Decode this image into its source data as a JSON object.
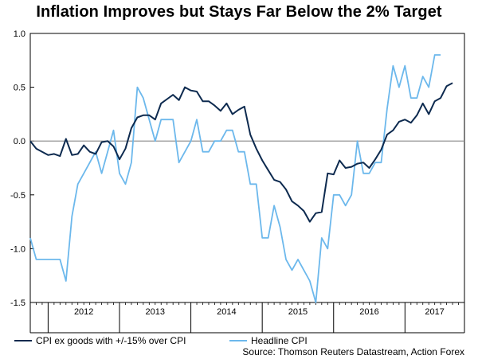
{
  "chart_data": {
    "type": "line",
    "title": "Inflation Improves but Stays Far Below the 2% Target",
    "xlabel": "",
    "ylabel": "",
    "ylim": [
      -1.5,
      1.0
    ],
    "yticks": [
      "1.0",
      "0.5",
      "0.0",
      "-0.5",
      "-1.0",
      "-1.5"
    ],
    "ytick_values": [
      1.0,
      0.5,
      0.0,
      -0.5,
      -1.0,
      -1.5
    ],
    "year_labels": [
      "2012",
      "2013",
      "2014",
      "2015",
      "2016",
      "2017"
    ],
    "x_start_month": "2011-10",
    "zero_line": true,
    "series": [
      {
        "name": "CPI ex goods with +/-15% over CPI",
        "color": "#0d2a4f",
        "values": [
          0.0,
          -0.07,
          -0.1,
          -0.13,
          -0.12,
          -0.14,
          0.02,
          -0.13,
          -0.12,
          -0.04,
          -0.1,
          -0.12,
          -0.01,
          0.0,
          -0.05,
          -0.17,
          -0.07,
          0.12,
          0.22,
          0.24,
          0.24,
          0.2,
          0.35,
          0.39,
          0.43,
          0.38,
          0.5,
          0.47,
          0.46,
          0.37,
          0.37,
          0.33,
          0.28,
          0.35,
          0.25,
          0.29,
          0.32,
          0.06,
          -0.07,
          -0.18,
          -0.27,
          -0.36,
          -0.38,
          -0.45,
          -0.56,
          -0.6,
          -0.65,
          -0.75,
          -0.67,
          -0.66,
          -0.3,
          -0.31,
          -0.18,
          -0.25,
          -0.24,
          -0.21,
          -0.2,
          -0.25,
          -0.17,
          -0.08,
          0.06,
          0.1,
          0.18,
          0.2,
          0.17,
          0.24,
          0.35,
          0.25,
          0.37,
          0.4,
          0.51,
          0.54
        ]
      },
      {
        "name": "Headline CPI",
        "color": "#6cb8ec",
        "values": [
          -0.9,
          -1.1,
          -1.1,
          -1.1,
          -1.1,
          -1.1,
          -1.3,
          -0.7,
          -0.4,
          -0.3,
          -0.2,
          -0.1,
          -0.3,
          -0.1,
          0.1,
          -0.3,
          -0.4,
          -0.2,
          0.5,
          0.4,
          0.2,
          0.0,
          0.2,
          0.2,
          0.2,
          -0.2,
          -0.1,
          0.0,
          0.2,
          -0.1,
          -0.1,
          0.0,
          0.0,
          0.1,
          0.1,
          -0.1,
          -0.1,
          -0.4,
          -0.4,
          -0.9,
          -0.9,
          -0.6,
          -0.8,
          -1.1,
          -1.2,
          -1.1,
          -1.2,
          -1.3,
          -1.5,
          -0.9,
          -1.0,
          -0.5,
          -0.5,
          -0.6,
          -0.5,
          0.0,
          -0.3,
          -0.3,
          -0.2,
          -0.2,
          0.3,
          0.7,
          0.5,
          0.7,
          0.4,
          0.4,
          0.6,
          0.5,
          0.8,
          0.8
        ]
      }
    ],
    "legend": {
      "position": "bottom-left"
    },
    "source": "Source: Thomson Reuters Datastream, Action Forex"
  }
}
